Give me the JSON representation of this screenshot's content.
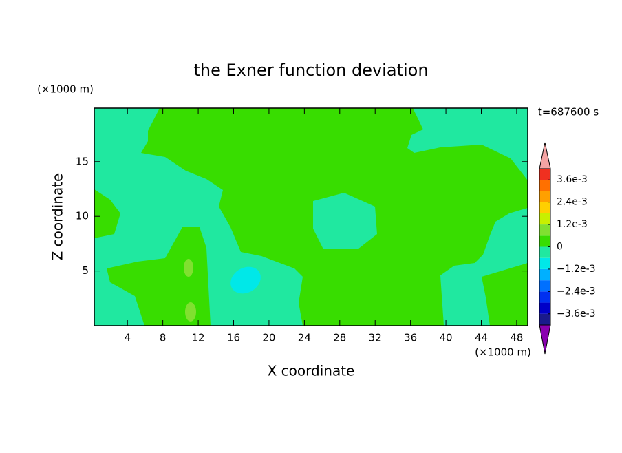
{
  "chart_data": {
    "type": "contour",
    "title": "the Exner function deviation",
    "xlabel": "X coordinate",
    "ylabel": "Z coordinate",
    "x_unit": "(×1000 m)",
    "y_unit": "(×1000 m)",
    "time_label": "t=687600 s",
    "xlim": [
      0.25,
      49.25
    ],
    "xticks": [
      4,
      8,
      12,
      16,
      20,
      24,
      28,
      32,
      36,
      40,
      44,
      48
    ],
    "ylim": [
      0,
      19.9
    ],
    "yticks": [
      5,
      10,
      15
    ],
    "colorbar": {
      "levels": [
        -0.0042,
        -0.0036,
        -0.003,
        -0.0024,
        -0.0018,
        -0.0012,
        -0.0006,
        0,
        0.0006,
        0.0012,
        0.0018,
        0.0024,
        0.003,
        0.0036,
        0.0042
      ],
      "colors": [
        "#1a1a8c",
        "#0000c8",
        "#0030f0",
        "#0070ff",
        "#00b0ff",
        "#00e8e8",
        "#20e8a0",
        "#38dd00",
        "#80e030",
        "#c8f000",
        "#ffd000",
        "#ffa000",
        "#ff7000",
        "#f03020"
      ],
      "under_color": "#8a00b0",
      "over_color": "#f4a4a4",
      "ticks": [
        {
          "value": 0.0036,
          "label": "3.6e-3"
        },
        {
          "value": 0.0024,
          "label": "2.4e-3"
        },
        {
          "value": 0.0012,
          "label": "1.2e-3"
        },
        0,
        {
          "value": -0.0012,
          "label": "−1.2e-3"
        },
        {
          "value": -0.0024,
          "label": "−2.4e-3"
        },
        {
          "value": -0.0036,
          "label": "−3.6e-3"
        }
      ]
    }
  }
}
